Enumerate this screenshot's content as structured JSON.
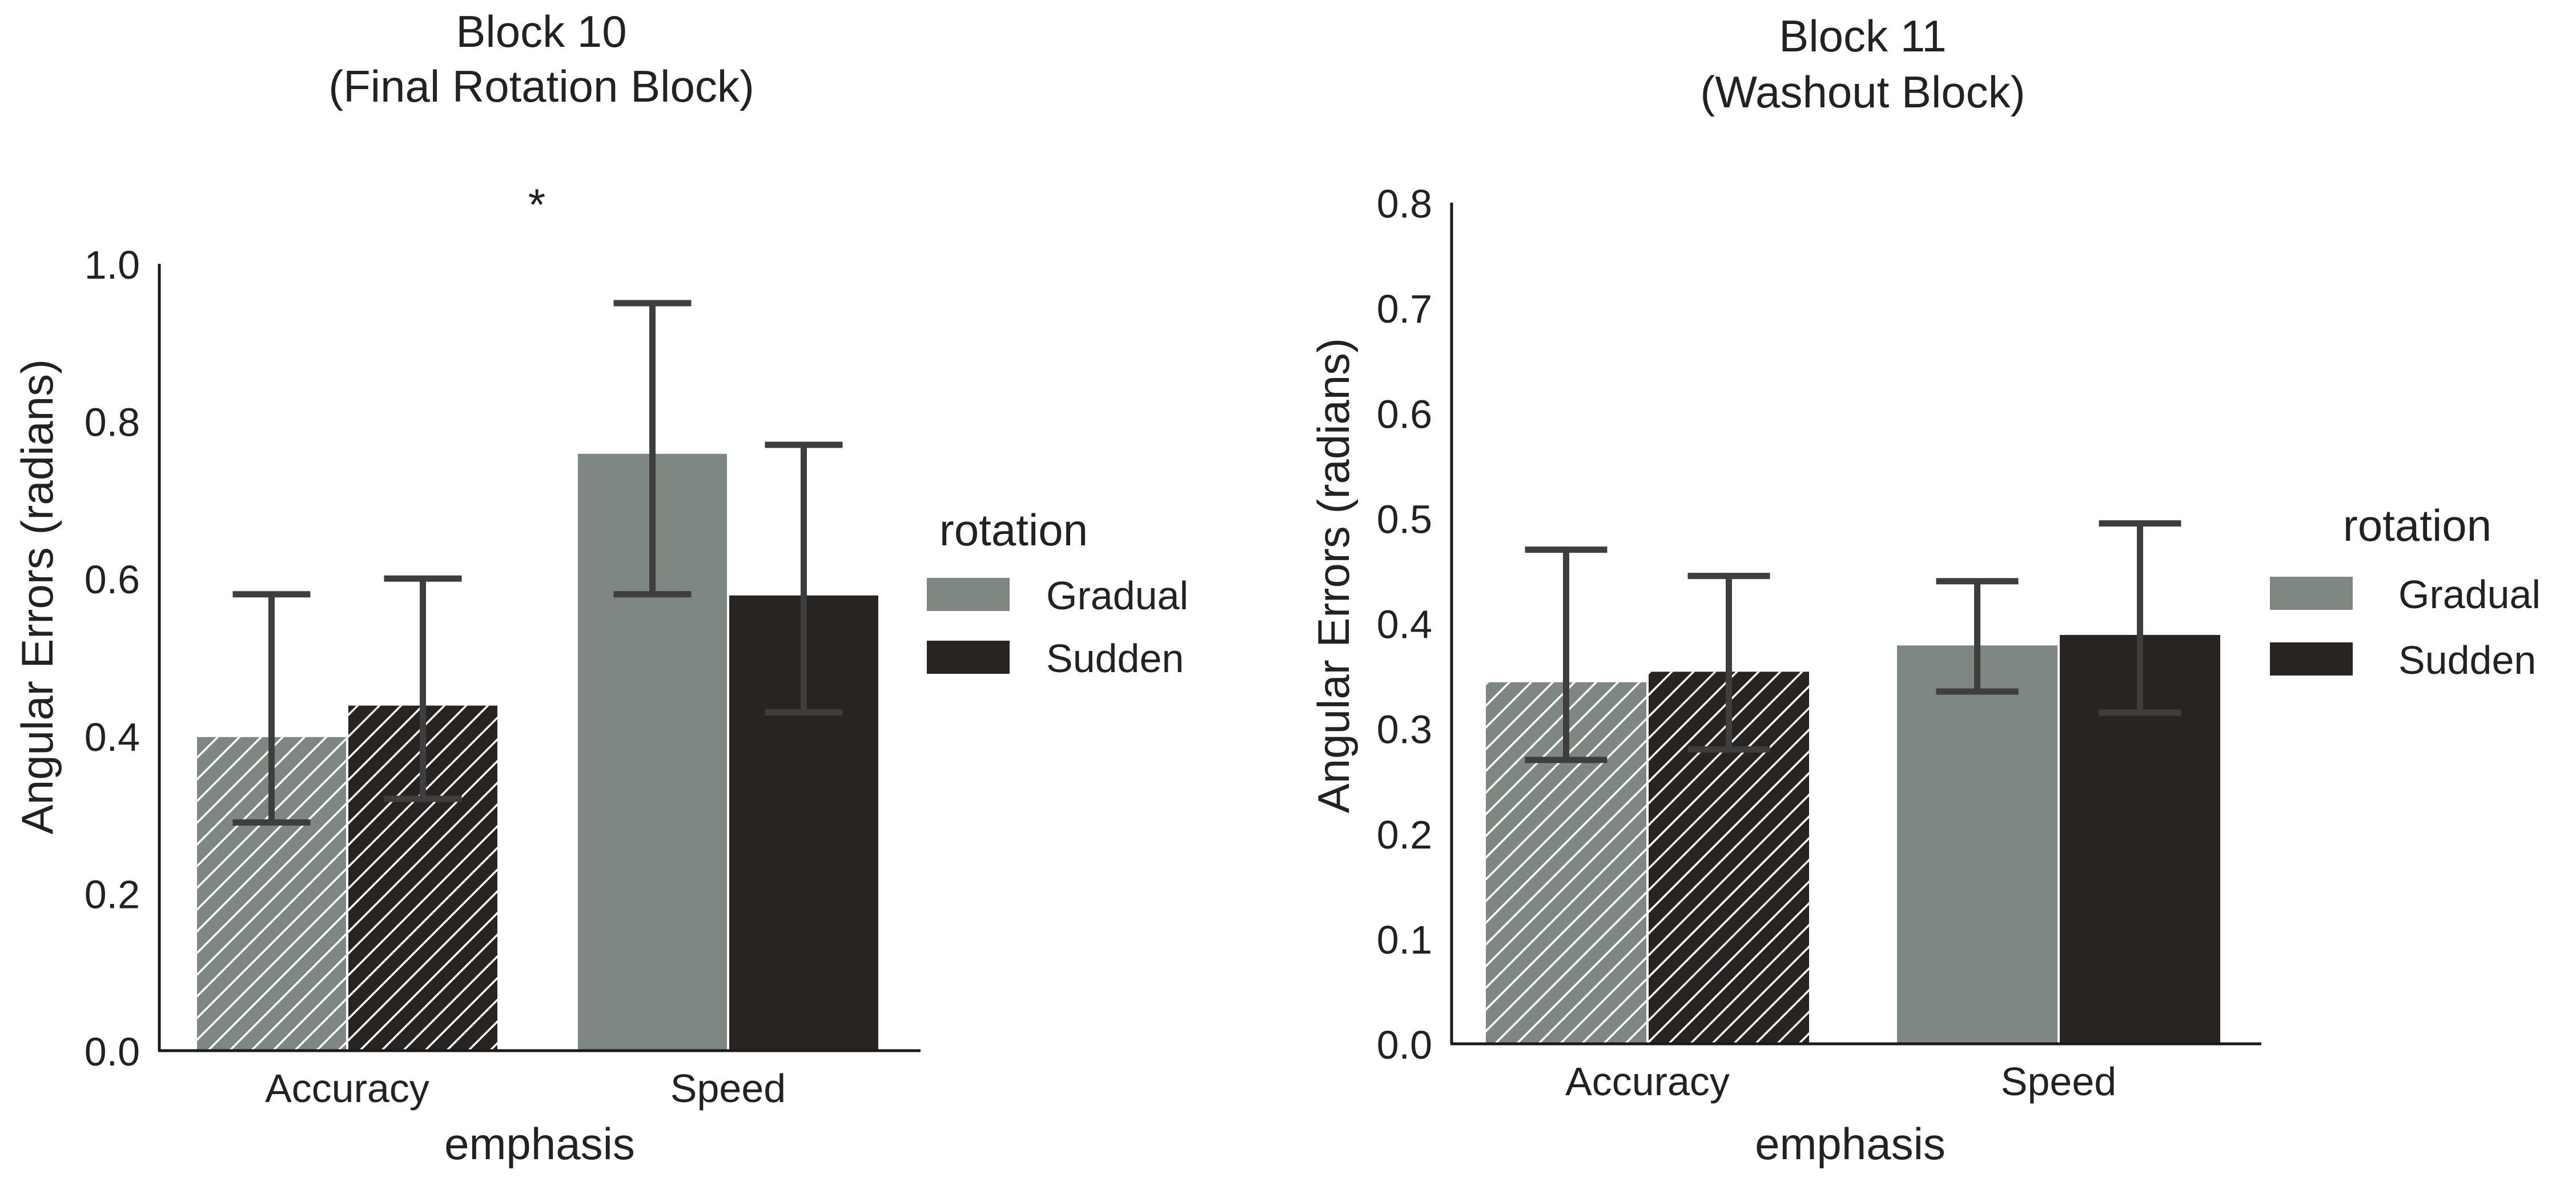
{
  "colors": {
    "gradual": "#7f8783",
    "sudden": "#272422",
    "axis": "#1a1a1a",
    "errorbar": "#3e3e3e",
    "text": "#222222",
    "background": "#ffffff"
  },
  "significance_marker": "*",
  "chart_data": [
    {
      "type": "bar",
      "title_line1": "Block 10",
      "title_line2": "(Final Rotation Block)",
      "xlabel": "emphasis",
      "ylabel": "Angular Errors (radians)",
      "categories": [
        "Accuracy",
        "Speed"
      ],
      "ylim": [
        0,
        1.0
      ],
      "yticks": [
        0.0,
        0.2,
        0.4,
        0.6,
        0.8,
        1.0
      ],
      "ytick_labels": [
        "0.0",
        "0.2",
        "0.4",
        "0.6",
        "0.8",
        "1.0"
      ],
      "hatched_categories": [
        "Accuracy"
      ],
      "legend": {
        "title": "rotation",
        "placement": "right"
      },
      "series": [
        {
          "name": "Gradual",
          "values": [
            0.4,
            0.76
          ],
          "err_low": [
            0.29,
            0.58
          ],
          "err_high": [
            0.58,
            0.95
          ]
        },
        {
          "name": "Sudden",
          "values": [
            0.44,
            0.58
          ],
          "err_low": [
            0.32,
            0.43
          ],
          "err_high": [
            0.6,
            0.77
          ]
        }
      ],
      "grid": false
    },
    {
      "type": "bar",
      "title_line1": "Block 11",
      "title_line2": "(Washout Block)",
      "xlabel": "emphasis",
      "ylabel": "Angular Errors (radians)",
      "categories": [
        "Accuracy",
        "Speed"
      ],
      "ylim": [
        0,
        0.8
      ],
      "yticks": [
        0.0,
        0.1,
        0.2,
        0.3,
        0.4,
        0.5,
        0.6,
        0.7,
        0.8
      ],
      "ytick_labels": [
        "0.0",
        "0.1",
        "0.2",
        "0.3",
        "0.4",
        "0.5",
        "0.6",
        "0.7",
        "0.8"
      ],
      "hatched_categories": [
        "Accuracy"
      ],
      "legend": {
        "title": "rotation",
        "placement": "right"
      },
      "series": [
        {
          "name": "Gradual",
          "values": [
            0.345,
            0.38
          ],
          "err_low": [
            0.27,
            0.335
          ],
          "err_high": [
            0.47,
            0.44
          ]
        },
        {
          "name": "Sudden",
          "values": [
            0.355,
            0.39
          ],
          "err_low": [
            0.28,
            0.315
          ],
          "err_high": [
            0.445,
            0.495
          ]
        }
      ],
      "grid": false
    }
  ]
}
